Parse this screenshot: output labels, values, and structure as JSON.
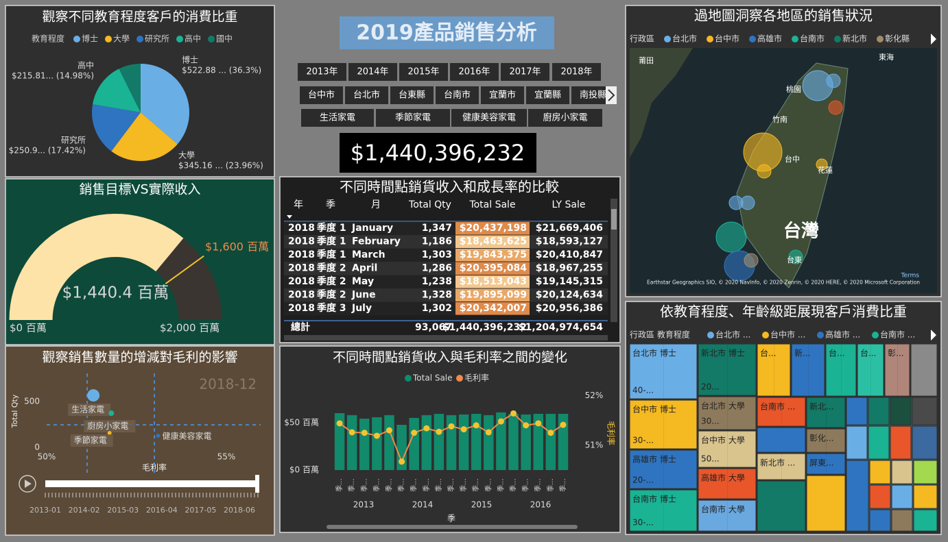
{
  "header": {
    "title": "2019產品銷售分析",
    "total": "$1,440,396,232"
  },
  "slicers": {
    "years": [
      "2013年",
      "2014年",
      "2015年",
      "2016年",
      "2017年",
      "2018年"
    ],
    "cities": [
      "台中市",
      "台北市",
      "台東縣",
      "台南市",
      "宜蘭市",
      "宜蘭縣",
      "南投縣"
    ],
    "products": [
      "生活家電",
      "季節家電",
      "健康美容家電",
      "廚房小家電"
    ]
  },
  "pie": {
    "title": "觀察不同教育程度客戶的消費比重",
    "legend_title": "教育程度",
    "slices": [
      {
        "name": "博士",
        "color": "#6aaee6",
        "value": 36.3,
        "label": "$522.88 ... (36.3%)"
      },
      {
        "name": "大學",
        "color": "#f5b921",
        "value": 23.96,
        "label": "$345.16 ... (23.96%)"
      },
      {
        "name": "研究所",
        "color": "#2f74c0",
        "value": 17.42,
        "label": "$250.9... (17.42%)"
      },
      {
        "name": "高中",
        "color": "#1ab394",
        "value": 14.98,
        "label": "$215.81... (14.98%)"
      },
      {
        "name": "國中",
        "color": "#127a67",
        "value": 7.34
      }
    ]
  },
  "gauge": {
    "title": "銷售目標VS實際收入",
    "value": {
      "value": 1440.4,
      "label": "$1,440.4 百萬"
    },
    "target": {
      "value": 1600,
      "label": "$1,600 百萬"
    },
    "min": {
      "value": 0,
      "label": "$0 百萬"
    },
    "max": {
      "value": 2000,
      "label": "$2,000 百萬"
    },
    "fill_color": "#fde3a7",
    "rest_color": "#3a3530",
    "target_color": "#f2c12e"
  },
  "scatter": {
    "title": "觀察銷售數量的增減對毛利的影響",
    "period": "2018-12",
    "y_label": "Total Qty",
    "x_label": "毛利率",
    "xlim": [
      50,
      55
    ],
    "xticks": [
      {
        "value": 50,
        "label": "50%"
      },
      {
        "value": 55,
        "label": "55%"
      }
    ],
    "ylim": [
      0,
      500
    ],
    "yticks": [
      0,
      500
    ],
    "points": [
      {
        "name": "生活家電",
        "color": "#6aaee6",
        "x": 51.3,
        "y": 567
      },
      {
        "name": "廚房小家電",
        "color": "#1ab394",
        "x": 51.8,
        "y": 373
      },
      {
        "name": "季節家電",
        "color": "#f5b921",
        "x": 51.75,
        "y": 157
      },
      {
        "name": "健康美容家電",
        "color": "#2f74c0",
        "x": 53.1,
        "y": 127
      }
    ],
    "timeline": [
      "2013-01",
      "2014-02",
      "2015-03",
      "2016-04",
      "2017-05",
      "2018-06"
    ]
  },
  "table": {
    "title": "不同時間點銷貨收入和成長率的比較",
    "columns": [
      "年",
      "季",
      "月",
      "Total Qty",
      "Total Sale",
      "LY Sale"
    ],
    "rows": [
      [
        "2018",
        "季度 1",
        "January",
        "1,347",
        "$20,437,198",
        "$21,669,406"
      ],
      [
        "2018",
        "季度 1",
        "February",
        "1,186",
        "$18,463,625",
        "$18,593,127"
      ],
      [
        "2018",
        "季度 1",
        "March",
        "1,303",
        "$19,843,375",
        "$20,410,847"
      ],
      [
        "2018",
        "季度 2",
        "April",
        "1,286",
        "$20,395,084",
        "$18,967,255"
      ],
      [
        "2018",
        "季度 2",
        "May",
        "1,238",
        "$18,513,043",
        "$19,145,315"
      ],
      [
        "2018",
        "季度 2",
        "June",
        "1,328",
        "$19,895,099",
        "$20,124,634"
      ],
      [
        "2018",
        "季度 3",
        "July",
        "1,302",
        "$20,342,007",
        "$20,956,386"
      ]
    ],
    "sale_colors": [
      "#e08a4a",
      "#f2c890",
      "#e9a868",
      "#e08a4a",
      "#f2c890",
      "#e9a868",
      "#e08a4a"
    ],
    "total": [
      "總計",
      "93,067",
      "$1,440,396,232",
      "$1,204,974,654"
    ]
  },
  "combo": {
    "title": "不同時間點銷貨收入與毛利率之間的變化",
    "x_label": "季",
    "y2_label": "毛利率",
    "categories": [
      "季...",
      "季...",
      "季...",
      "季...",
      "季...",
      "季...",
      "季...",
      "季...",
      "季...",
      "季...",
      "季...",
      "季...",
      "季...",
      "季...",
      "季...",
      "季...",
      "季...",
      "季...",
      "季..."
    ],
    "groups": [
      "2013",
      "2014",
      "2015",
      "2016"
    ],
    "ylim": [
      0,
      84
    ],
    "yticks": [
      {
        "value": 0,
        "label": "$0 百萬"
      },
      {
        "value": 50,
        "label": "$50 百萬"
      }
    ],
    "y2lim": [
      50.5,
      52.1
    ],
    "y2ticks": [
      {
        "value": 51,
        "label": "51%"
      },
      {
        "value": 52,
        "label": "52%"
      }
    ],
    "series": [
      {
        "name": "Total Sale",
        "color": "#128a6c",
        "values": [
          60.1,
          58.0,
          54.3,
          55.8,
          58.0,
          47.8,
          55.1,
          58.0,
          59.4,
          58.0,
          58.7,
          59.4,
          58.0,
          60.9,
          59.4,
          58.7,
          59.4,
          59.4,
          59.4
        ]
      },
      {
        "name": "毛利率",
        "color": "#f08a4b",
        "axis": "y2",
        "values": [
          51.44,
          51.26,
          51.25,
          51.19,
          51.3,
          50.67,
          51.25,
          51.34,
          51.27,
          51.38,
          51.32,
          51.4,
          51.26,
          51.48,
          51.64,
          51.4,
          51.44,
          51.25,
          51.41
        ]
      }
    ]
  },
  "map": {
    "title": "過地圖洞察各地區的銷售狀況",
    "legend_title": "行政區",
    "legend": [
      {
        "name": "台北市",
        "color": "#6aaee6"
      },
      {
        "name": "台中市",
        "color": "#f5b921"
      },
      {
        "name": "高雄市",
        "color": "#2f74c0"
      },
      {
        "name": "台南市",
        "color": "#1ab394"
      },
      {
        "name": "新北市",
        "color": "#127a67"
      },
      {
        "name": "彰化縣",
        "color": "#a08c6c"
      }
    ],
    "places": [
      "莆田",
      "東海",
      "桃園",
      "竹南",
      "台中",
      "花蓮",
      "台灣",
      "台東"
    ],
    "terms": "Terms",
    "attribution": "Earthstar Geographics SIO, © 2020 NavInfo, © 2020 Zenrin, © 2020 HERE, © 2020 Microsoft Corporation"
  },
  "treemap": {
    "title": "依教育程度、年齡級距展現客戶消費比重",
    "legend_title": "行政區 教育程度",
    "legend": [
      {
        "name": "台北市 ...",
        "color": "#6aaee6"
      },
      {
        "name": "台中市 ...",
        "color": "#f5b921"
      },
      {
        "name": "高雄市 ...",
        "color": "#2f74c0"
      },
      {
        "name": "台南市 ...",
        "color": "#1ab394"
      }
    ],
    "tiles": [
      {
        "label": "台北市 博士",
        "sub": "40-...",
        "color": "#6aaee6"
      },
      {
        "label": "台中市 博士",
        "sub": "30-...",
        "color": "#f5b921"
      },
      {
        "label": "高雄市 博士",
        "sub": "20-...",
        "color": "#2f74c0"
      },
      {
        "label": "台南市 博士",
        "sub": "30-...",
        "color": "#1ab394"
      },
      {
        "label": "新北市 博士",
        "sub": "20...",
        "color": "#127a67"
      },
      {
        "label": "台北市 大學",
        "sub": "30...",
        "color": "#8d7a5c"
      },
      {
        "label": "台中市 大學",
        "sub": "50...",
        "color": "#d9c48e"
      },
      {
        "label": "高雄市 大學",
        "color": "#e8562a"
      },
      {
        "label": "台南市 大學",
        "color": "#6aa8e0"
      },
      {
        "label": "台...",
        "color": "#f5b921"
      },
      {
        "label": "新...",
        "color": "#2f74c0"
      },
      {
        "label": "台...",
        "color": "#1ab394"
      },
      {
        "label": "台...",
        "color": "#2bc0a4"
      },
      {
        "label": "彰...",
        "color": "#b0857a"
      },
      {
        "label": "台南市 ...",
        "color": "#e8562a"
      },
      {
        "label": "新北...",
        "color": "#127a67"
      },
      {
        "label": "彰化...",
        "color": "#8d7a5c"
      },
      {
        "label": "新北市 ...",
        "color": "#d9c48e"
      },
      {
        "label": "屏東...",
        "color": "#2f74c0"
      }
    ]
  }
}
